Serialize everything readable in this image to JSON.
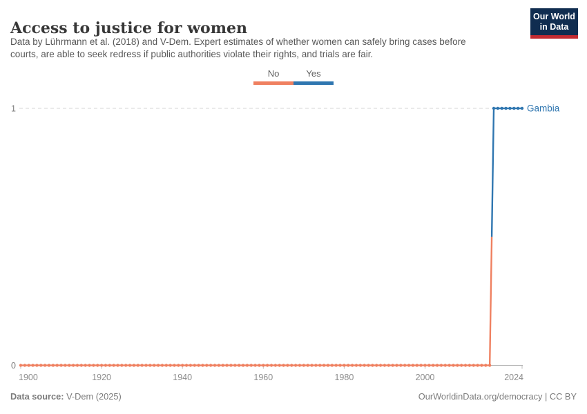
{
  "header": {
    "title": "Access to justice for women",
    "subtitle_lines": [
      "Data by Lührmann et al. (2018) and V-Dem. Expert estimates of whether women can safely bring cases before",
      "courts, are able to seek redress if public authorities violate their rights, and trials are fair."
    ],
    "logo": {
      "line1": "Our World",
      "line2": "in Data",
      "bg_color": "#102D50",
      "accent_color": "#C32B31"
    }
  },
  "legend": {
    "items": [
      {
        "label": "No",
        "color": "#EF8060"
      },
      {
        "label": "Yes",
        "color": "#2F76B0"
      }
    ]
  },
  "chart_data": {
    "type": "line",
    "style": "step-line-with-year-markers",
    "title": "Access to justice for women",
    "xlabel": "",
    "ylabel": "",
    "xlim": [
      1900,
      2024
    ],
    "ylim": [
      0,
      1
    ],
    "x_ticks": [
      1900,
      1920,
      1940,
      1960,
      1980,
      2000,
      2024
    ],
    "y_ticks": [
      0,
      1
    ],
    "grid": "dashed-gridline-at-y1-only",
    "legend_position": "top-center",
    "value_labels": {
      "0": "No",
      "1": "Yes"
    },
    "series": [
      {
        "name": "Gambia",
        "color_by_value": {
          "0": "#EF8060",
          "1": "#2F76B0"
        },
        "steps": [
          {
            "from_year": 1900,
            "to_year": 2016,
            "value": 0
          },
          {
            "from_year": 2017,
            "to_year": 2024,
            "value": 1
          }
        ]
      }
    ],
    "axis_colors": {
      "tick_label": "#8c8c8c",
      "y_tick_label": "#7d7d7d",
      "axis_line": "#b3b3b3",
      "tick_mark": "#bdbdbd",
      "gridline": "#d4d4d4"
    }
  },
  "footer": {
    "source_label": "Data source:",
    "source_value": " V-Dem (2025)",
    "credit": "OurWorldinData.org/democracy | CC BY"
  }
}
